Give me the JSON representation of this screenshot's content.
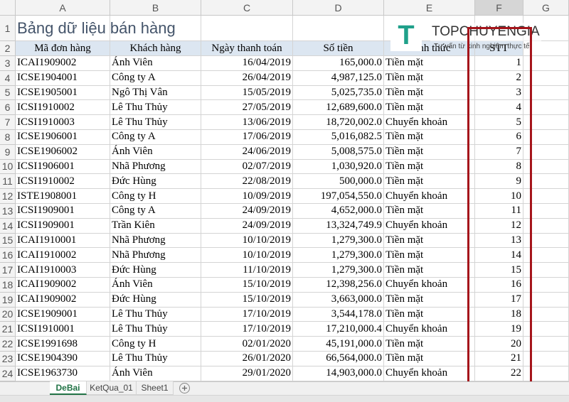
{
  "columns": [
    "A",
    "B",
    "C",
    "D",
    "E",
    "F",
    "G"
  ],
  "row_numbers": [
    1,
    2,
    3,
    4,
    5,
    6,
    7,
    8,
    9,
    10,
    11,
    12,
    13,
    14,
    15,
    16,
    17,
    18,
    19,
    20,
    21,
    22,
    23,
    24
  ],
  "title": "Bảng dữ liệu bán hàng",
  "header": [
    "Mã đơn hàng",
    "Khách hàng",
    "Ngày thanh toán",
    "Số tiền",
    "Hình thức",
    "STT"
  ],
  "rows": [
    [
      "ICAI1909002",
      "Ánh Viên",
      "16/04/2019",
      "165,000.0",
      "Tiền mặt",
      1
    ],
    [
      "ICSE1904001",
      "Công ty A",
      "26/04/2019",
      "4,987,125.0",
      "Tiền mặt",
      2
    ],
    [
      "ICSE1905001",
      "Ngô Thị Vân",
      "15/05/2019",
      "5,025,735.0",
      "Tiền mặt",
      3
    ],
    [
      "ICSI1910002",
      "Lê Thu Thủy",
      "27/05/2019",
      "12,689,600.0",
      "Tiền mặt",
      4
    ],
    [
      "ICSI1910003",
      "Lê Thu Thủy",
      "13/06/2019",
      "18,720,002.0",
      "Chuyển khoản",
      5
    ],
    [
      "ICSE1906001",
      "Công ty A",
      "17/06/2019",
      "5,016,082.5",
      "Tiền mặt",
      6
    ],
    [
      "ICSE1906002",
      "Ánh Viên",
      "24/06/2019",
      "5,008,575.0",
      "Tiền mặt",
      7
    ],
    [
      "ICSI1906001",
      "Nhã Phương",
      "02/07/2019",
      "1,030,920.0",
      "Tiền mặt",
      8
    ],
    [
      "ICSI1910002",
      "Đức Hùng",
      "22/08/2019",
      "500,000.0",
      "Tiền mặt",
      9
    ],
    [
      "ISTE1908001",
      "Công ty H",
      "10/09/2019",
      "197,054,550.0",
      "Chuyển khoản",
      10
    ],
    [
      "ICSI1909001",
      "Công ty A",
      "24/09/2019",
      "4,652,000.0",
      "Tiền mặt",
      11
    ],
    [
      "ICSI1909001",
      "Trần Kiên",
      "24/09/2019",
      "13,324,749.9",
      "Chuyển khoản",
      12
    ],
    [
      "ICAI1910001",
      "Nhã Phương",
      "10/10/2019",
      "1,279,300.0",
      "Tiền mặt",
      13
    ],
    [
      "ICAI1910002",
      "Nhã Phương",
      "10/10/2019",
      "1,279,300.0",
      "Tiền mặt",
      14
    ],
    [
      "ICAI1910003",
      "Đức Hùng",
      "11/10/2019",
      "1,279,300.0",
      "Tiền mặt",
      15
    ],
    [
      "ICAI1909002",
      "Ánh Viên",
      "15/10/2019",
      "12,398,256.0",
      "Chuyển khoản",
      16
    ],
    [
      "ICAI1909002",
      "Đức Hùng",
      "15/10/2019",
      "3,663,000.0",
      "Tiền mặt",
      17
    ],
    [
      "ICSE1909001",
      "Lê Thu Thủy",
      "17/10/2019",
      "3,544,178.0",
      "Tiền mặt",
      18
    ],
    [
      "ICSI1910001",
      "Lê Thu Thủy",
      "17/10/2019",
      "17,210,000.4",
      "Chuyển khoản",
      19
    ],
    [
      "ICSE1991698",
      "Công ty H",
      "02/01/2020",
      "45,191,000.0",
      "Tiền mặt",
      20
    ],
    [
      "ICSE1904390",
      "Lê Thu Thủy",
      "26/01/2020",
      "66,564,000.0",
      "Tiền mặt",
      21
    ],
    [
      "ICSE1963730",
      "Ánh Viên",
      "29/01/2020",
      "14,903,000.0",
      "Chuyển khoản",
      22
    ]
  ],
  "sheets": [
    "DeBai",
    "KetQua_01",
    "Sheet1"
  ],
  "logo": {
    "letter": "T",
    "name": "TOPCHUYENGIA",
    "tagline": "Tư vấn từ kinh nghiệm thực tế"
  }
}
